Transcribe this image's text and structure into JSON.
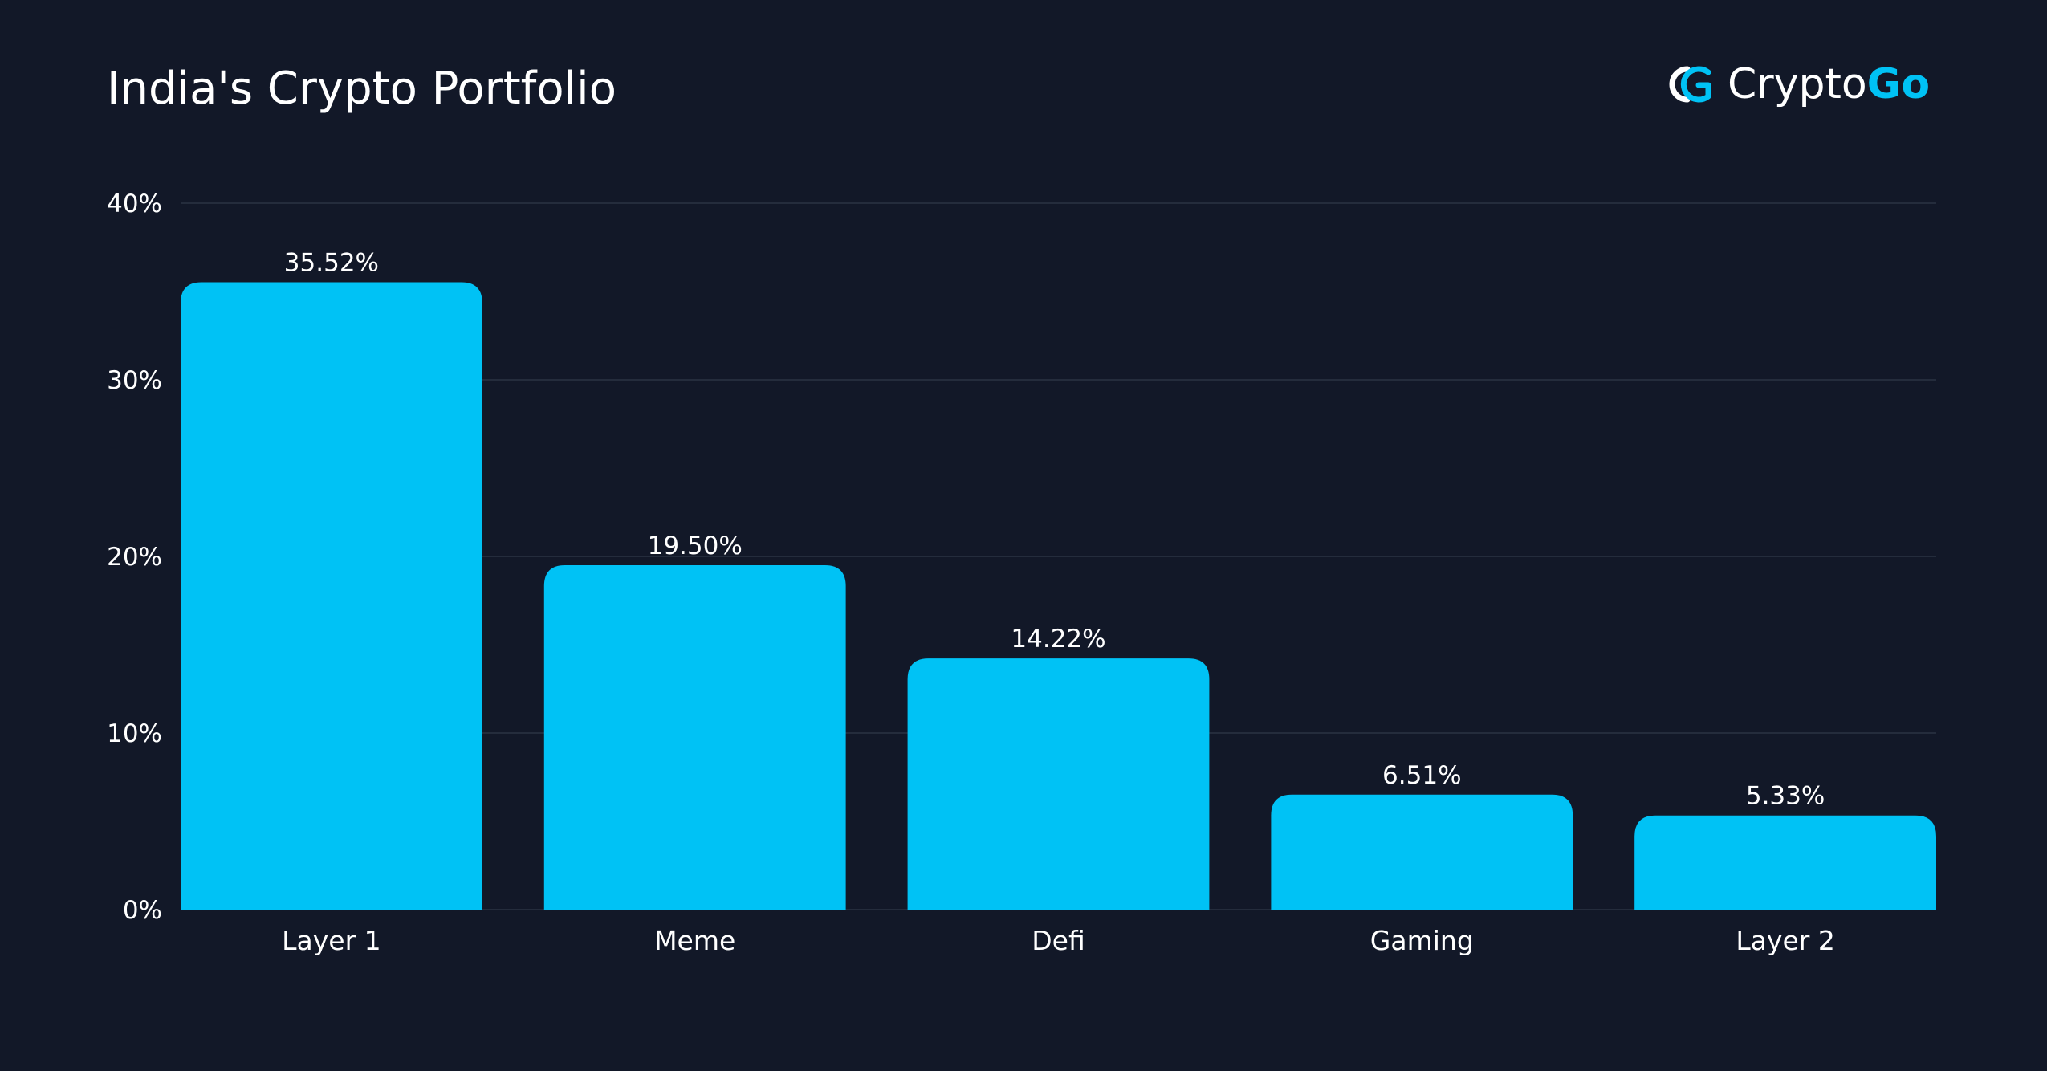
{
  "colors": {
    "background": "#121828",
    "bar": "#00c2f5",
    "grid": "#2b3242",
    "text": "#ffffff",
    "brand_accent": "#00c2f5"
  },
  "brand": {
    "name_part1": "Crypto",
    "name_part2": "Go",
    "icon": "cryptogo-logo-icon"
  },
  "chart_data": {
    "type": "bar",
    "title": "India's Crypto Portfolio",
    "xlabel": "",
    "ylabel": "",
    "categories": [
      "Layer 1",
      "Meme",
      "Defi",
      "Gaming",
      "Layer 2"
    ],
    "values": [
      35.52,
      19.5,
      14.22,
      6.51,
      5.33
    ],
    "value_labels": [
      "35.52%",
      "19.50%",
      "14.22%",
      "6.51%",
      "5.33%"
    ],
    "ylim": [
      0,
      40
    ],
    "yticks": [
      0,
      10,
      20,
      30,
      40
    ],
    "ytick_labels": [
      "0%",
      "10%",
      "20%",
      "30%",
      "40%"
    ],
    "grid": true,
    "legend": "none"
  }
}
